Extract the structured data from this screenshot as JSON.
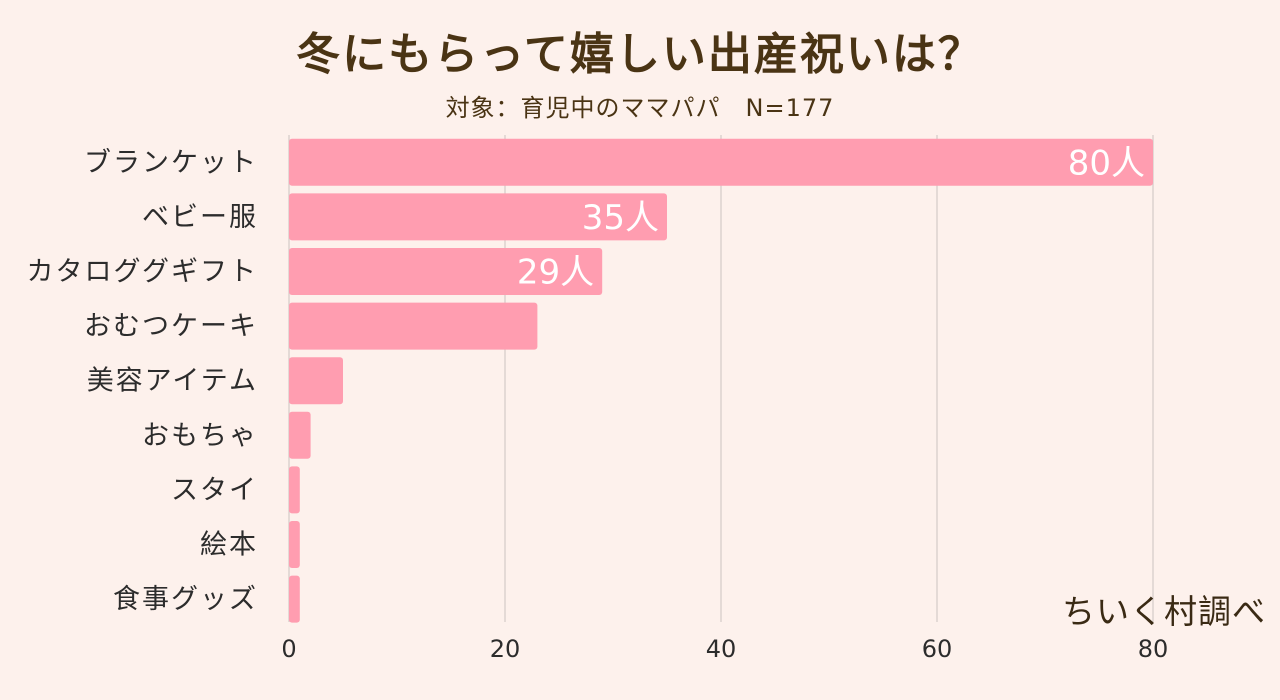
{
  "chart_data": {
    "type": "bar",
    "orientation": "horizontal",
    "title": "冬にもらって嬉しい出産祝いは？",
    "subtitle": "対象：育児中のママパパ　N=177",
    "categories": [
      "ブランケット",
      "ベビー服",
      "カタロググギフト",
      "おむつケーキ",
      "美容アイテム",
      "おもちゃ",
      "スタイ",
      "絵本",
      "食事グッズ"
    ],
    "values": [
      80,
      35,
      29,
      23,
      5,
      2,
      1,
      1,
      1
    ],
    "data_labels": [
      "80人",
      "35人",
      "29人",
      null,
      null,
      null,
      null,
      null,
      null
    ],
    "xlim": [
      0,
      80
    ],
    "xticks": [
      0,
      20,
      40,
      60,
      80
    ],
    "xlabel": "",
    "ylabel": "",
    "grid": true,
    "legend": "none"
  },
  "source": "ちいく村調べ",
  "colors": {
    "background": "#fdf1ec",
    "bar": "#ff9db0",
    "grid": "#d7cdcb",
    "title": "#4a3414",
    "label": "#2c2c2c"
  }
}
